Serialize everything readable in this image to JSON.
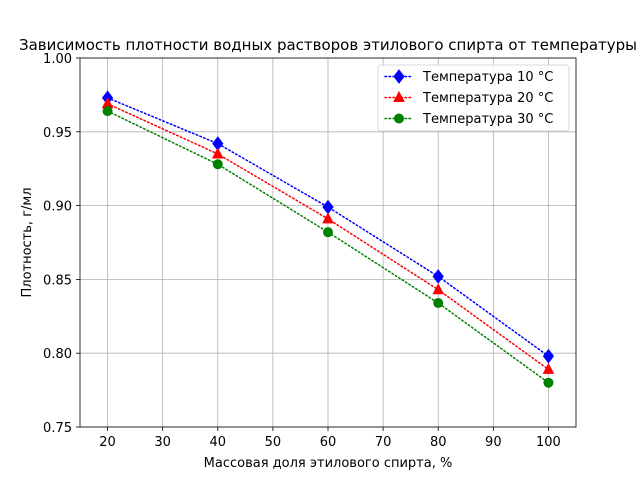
{
  "chart_data": {
    "type": "line",
    "title": "Зависимость плотности водных растворов этилового спирта от температуры",
    "xlabel": "Массовая доля этилового спирта, %",
    "ylabel": "Плотность, г/мл",
    "xlim": [
      15,
      105
    ],
    "ylim": [
      0.75,
      1.0
    ],
    "x_ticks": [
      20,
      30,
      40,
      50,
      60,
      70,
      80,
      90,
      100
    ],
    "y_ticks": [
      0.75,
      0.8,
      0.85,
      0.9,
      0.95,
      1.0
    ],
    "grid": true,
    "legend_position": "top-right",
    "x": [
      20,
      40,
      60,
      80,
      100
    ],
    "series": [
      {
        "name": "Температура 10 °C",
        "values": [
          0.973,
          0.942,
          0.899,
          0.852,
          0.798
        ],
        "color": "#0000ff",
        "marker": "diamond",
        "linestyle": "dotted"
      },
      {
        "name": "Температура 20 °C",
        "values": [
          0.969,
          0.935,
          0.891,
          0.843,
          0.789
        ],
        "color": "#ff0000",
        "marker": "triangle",
        "linestyle": "dotted"
      },
      {
        "name": "Температура 30 °C",
        "values": [
          0.964,
          0.928,
          0.882,
          0.834,
          0.78
        ],
        "color": "#008000",
        "marker": "circle",
        "linestyle": "dotted"
      }
    ]
  }
}
